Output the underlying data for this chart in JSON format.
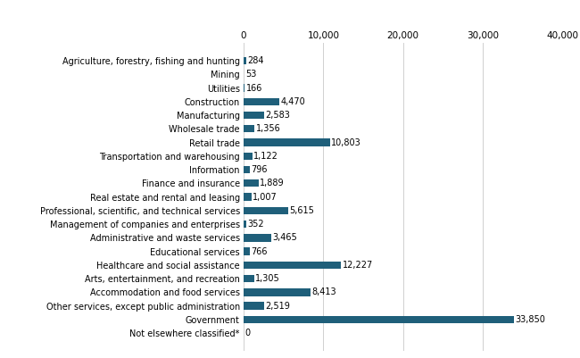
{
  "categories": [
    "Agriculture, forestry, fishing and hunting",
    "Mining",
    "Utilities",
    "Construction",
    "Manufacturing",
    "Wholesale trade",
    "Retail trade",
    "Transportation and warehousing",
    "Information",
    "Finance and insurance",
    "Real estate and rental and leasing",
    "Professional, scientific, and technical services",
    "Management of companies and enterprises",
    "Administrative and waste services",
    "Educational services",
    "Healthcare and social assistance",
    "Arts, entertainment, and recreation",
    "Accommodation and food services",
    "Other services, except public administration",
    "Government",
    "Not elsewhere classified*"
  ],
  "values": [
    284,
    53,
    166,
    4470,
    2583,
    1356,
    10803,
    1122,
    796,
    1889,
    1007,
    5615,
    352,
    3465,
    766,
    12227,
    1305,
    8413,
    2519,
    33850,
    0
  ],
  "bar_color": "#1f5f7a",
  "label_color": "#000000",
  "background_color": "#ffffff",
  "xlim": [
    0,
    40000
  ],
  "xticks": [
    0,
    10000,
    20000,
    30000,
    40000
  ],
  "xtick_labels": [
    "0",
    "10,000",
    "20,000",
    "30,000",
    "40,000"
  ],
  "bar_height": 0.55,
  "figsize": [
    6.5,
    4.01
  ],
  "dpi": 100,
  "label_fontsize": 7,
  "ytick_fontsize": 7,
  "xtick_fontsize": 7.5
}
